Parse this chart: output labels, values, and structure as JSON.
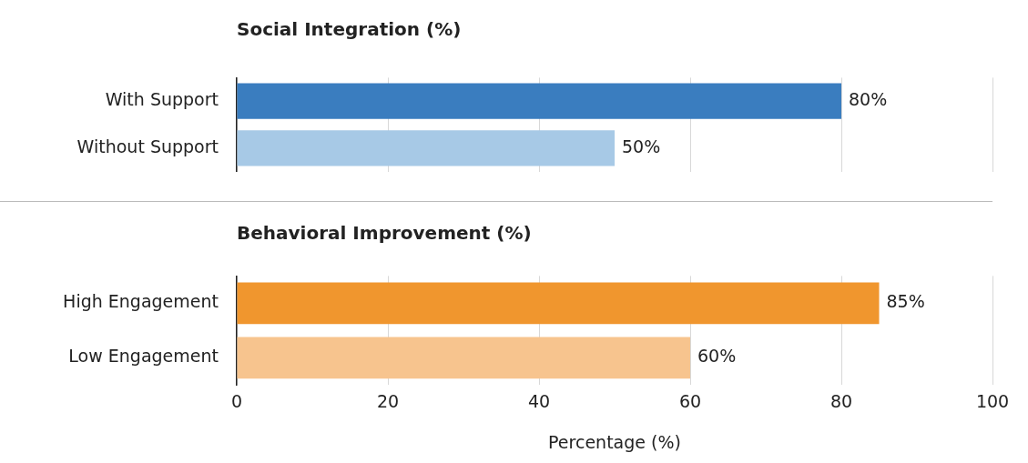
{
  "chart_data": [
    {
      "type": "bar",
      "orientation": "horizontal",
      "title": "Social Integration (%)",
      "categories": [
        "With Support",
        "Without Support"
      ],
      "values": [
        80,
        50
      ],
      "colors": [
        "#3a7dbf",
        "#a7c9e6"
      ],
      "value_labels": [
        "80%",
        "50%"
      ],
      "xlim": [
        0,
        100
      ],
      "xticks": [
        0,
        20,
        40,
        60,
        80,
        100
      ],
      "grid": "x",
      "tick_labels": "y",
      "legend": false
    },
    {
      "type": "bar",
      "orientation": "horizontal",
      "title": "Behavioral Improvement (%)",
      "categories": [
        "High Engagement",
        "Low Engagement"
      ],
      "values": [
        85,
        60
      ],
      "colors": [
        "#f0962e",
        "#f7c48e"
      ],
      "value_labels": [
        "85%",
        "60%"
      ],
      "xlim": [
        0,
        100
      ],
      "xticks": [
        0,
        20,
        40,
        60,
        80,
        100
      ],
      "xlabel": "Percentage (%)",
      "grid": "x",
      "legend": false
    }
  ]
}
